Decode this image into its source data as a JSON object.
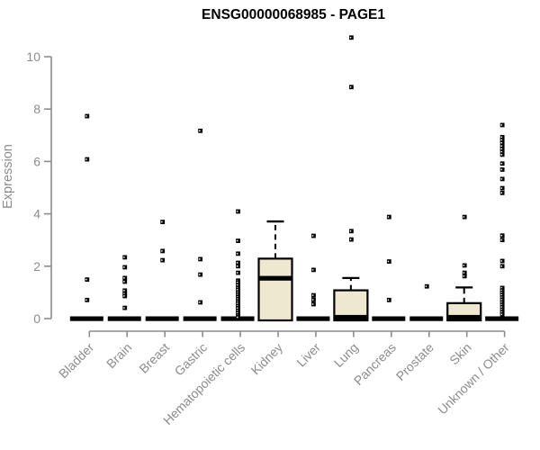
{
  "chart_data": {
    "type": "boxplot",
    "title": "ENSG00000068985 - PAGE1",
    "ylabel": "Expression",
    "xlabel": "",
    "yticks": [
      0,
      2,
      4,
      6,
      8,
      10
    ],
    "ylim": [
      0,
      10.8
    ],
    "grid": false,
    "legend": "none",
    "axis_color": "#8c8c8c",
    "box_fill": "#EDE8CF",
    "box_stroke": "#000000",
    "categories": [
      "Bladder",
      "Brain",
      "Breast",
      "Gastric",
      "Hematopoietic cells",
      "Kidney",
      "Liver",
      "Lung",
      "Pancreas",
      "Prostate",
      "Skin",
      "Unknown / Other"
    ],
    "boxes": [
      {
        "category": "Bladder",
        "q1": 0,
        "median": 0,
        "q3": 0,
        "whisker_low": 0,
        "whisker_high": 0,
        "outliers": [
          7.73,
          6.08,
          1.49,
          0.71
        ]
      },
      {
        "category": "Brain",
        "q1": 0,
        "median": 0,
        "q3": 0,
        "whisker_low": 0,
        "whisker_high": 0,
        "outliers": [
          2.34,
          1.96,
          1.55,
          1.41,
          1.07,
          0.95,
          0.86,
          0.41
        ]
      },
      {
        "category": "Breast",
        "q1": 0,
        "median": 0,
        "q3": 0,
        "whisker_low": 0,
        "whisker_high": 0,
        "outliers": [
          3.69,
          2.58,
          2.23
        ]
      },
      {
        "category": "Gastric",
        "q1": 0,
        "median": 0,
        "q3": 0,
        "whisker_low": 0,
        "whisker_high": 0,
        "outliers": [
          7.17,
          2.27,
          1.68,
          0.62
        ]
      },
      {
        "category": "Hematopoietic cells",
        "q1": 0,
        "median": 0,
        "q3": 0,
        "whisker_low": 0,
        "whisker_high": 0,
        "outliers": [
          4.09,
          2.97,
          2.48,
          2.13,
          2.0,
          1.75,
          1.45,
          1.38,
          1.28,
          1.18,
          1.1,
          1.0,
          0.92,
          0.83,
          0.75,
          0.66,
          0.58,
          0.48,
          0.4,
          0.3,
          0.21,
          0.12,
          0.05
        ]
      },
      {
        "category": "Kidney",
        "q1": 0,
        "median": 1.54,
        "q3": 2.29,
        "whisker_low": 0,
        "whisker_high": 3.71,
        "outliers": []
      },
      {
        "category": "Liver",
        "q1": 0,
        "median": 0,
        "q3": 0,
        "whisker_low": 0,
        "whisker_high": 0,
        "outliers": [
          3.16,
          1.86,
          0.89,
          0.72,
          0.55
        ]
      },
      {
        "category": "Lung",
        "q1": 0,
        "median": 0.05,
        "q3": 1.08,
        "whisker_low": 0,
        "whisker_high": 1.55,
        "outliers": [
          10.73,
          8.84,
          3.34,
          3.02
        ]
      },
      {
        "category": "Pancreas",
        "q1": 0,
        "median": 0,
        "q3": 0,
        "whisker_low": 0,
        "whisker_high": 0,
        "outliers": [
          3.88,
          2.18,
          0.71
        ]
      },
      {
        "category": "Prostate",
        "q1": 0,
        "median": 0,
        "q3": 0,
        "whisker_low": 0,
        "whisker_high": 0,
        "outliers": [
          1.23
        ]
      },
      {
        "category": "Skin",
        "q1": 0,
        "median": 0.05,
        "q3": 0.59,
        "whisker_low": 0,
        "whisker_high": 1.19,
        "outliers": [
          3.88,
          2.03,
          1.75,
          1.62
        ]
      },
      {
        "category": "Unknown / Other",
        "q1": 0,
        "median": 0,
        "q3": 0,
        "whisker_low": 0,
        "whisker_high": 0,
        "outliers": [
          7.39,
          6.93,
          6.82,
          6.71,
          6.59,
          6.48,
          6.37,
          6.26,
          5.92,
          5.69,
          5.33,
          4.98,
          4.8,
          3.17,
          3.0,
          2.2,
          2.0,
          1.17,
          1.08,
          0.99,
          0.9,
          0.81,
          0.72,
          0.62,
          0.53,
          0.44,
          0.34,
          0.25,
          0.16
        ]
      }
    ]
  }
}
